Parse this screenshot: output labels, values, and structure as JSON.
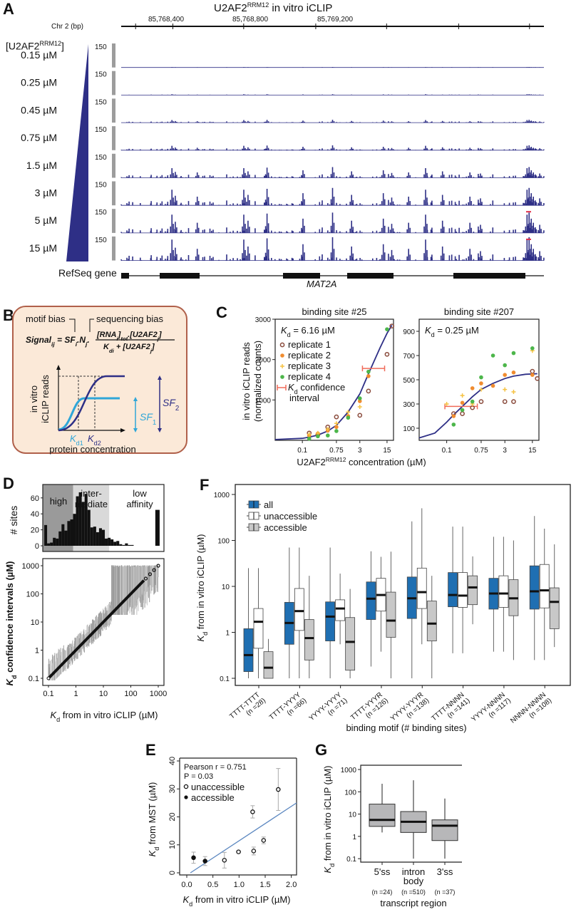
{
  "panels": {
    "A": "A",
    "B": "B",
    "C": "C",
    "D": "D",
    "E": "E",
    "F": "F",
    "G": "G"
  },
  "colors": {
    "navy": "#2e2f86",
    "blue": "#1f6fb2",
    "lightblue": "#2fa6d8",
    "gray": "#c8c8c8",
    "darkgray": "#8c8c8c",
    "salmon": "#f06b5a",
    "rep1": "#8a4b3c",
    "rep2": "#f08c30",
    "rep3": "#f5c242",
    "rep4": "#4cb64a",
    "boxbg": "#fbe9d8",
    "boxborder": "#b0604a"
  },
  "panelA": {
    "title_main": "U2AF2",
    "title_sup": "RRM12",
    "title_rest": " in vitro iCLIP",
    "axis_label": "Chr 2 (bp)",
    "coords": [
      "85,768,400",
      "85,768,800",
      "85,769,200"
    ],
    "conc_header_main": "[U2AF2",
    "conc_header_sup": "RRM12",
    "conc_header_end": "]",
    "track_scale": "150",
    "tracks": [
      {
        "label": "0.15 µM",
        "level": 0.05
      },
      {
        "label": "0.25 µM",
        "level": 0.08
      },
      {
        "label": "0.45 µM",
        "level": 0.2
      },
      {
        "label": "0.75 µM",
        "level": 0.3
      },
      {
        "label": "1.5 µM",
        "level": 0.55
      },
      {
        "label": "3 µM",
        "level": 0.8
      },
      {
        "label": "5 µM",
        "level": 0.9
      },
      {
        "label": "15 µM",
        "level": 1.0
      }
    ],
    "refseq_label": "RefSeq gene",
    "gene_name": "MAT2A"
  },
  "panelB": {
    "motif_bias": "motif bias",
    "sequencing_bias": "sequencing bias",
    "formula_lhs": "Signal",
    "formula_lhs_sub": "ij",
    "formula_mid": " = SF",
    "formula_mid_sub": "i",
    "formula_n": ".N",
    "formula_n_sub": "j",
    "numerator": "[RNA",
    "numerator_sub": "i",
    "numerator_rest": "]",
    "numerator_tot": "tot",
    "numerator_u2af": ".[U2AF2",
    "numerator_u2af_sub": "j",
    "numerator_end": "]",
    "denominator": "K",
    "denominator_sub": "di",
    "denominator_rest": " + [U2AF2",
    "denominator_rest_sub": "j",
    "denominator_end": "]",
    "ylabel1": "in vitro",
    "ylabel2": "iCLIP reads",
    "xlabel": "protein concentration",
    "kd1": "K",
    "kd1_sub": "d1",
    "kd2": "K",
    "kd2_sub": "d2",
    "sf1": "SF",
    "sf1_sub": "1",
    "sf2": "SF",
    "sf2_sub": "2"
  },
  "panelC": {
    "ylabel1": "in vitro iCLIP reads",
    "ylabel2": "(normalized counts)",
    "xlabel_main": "U2AF2",
    "xlabel_sup": "RRM12",
    "xlabel_rest": " concentration (µM)",
    "legend": [
      "replicate 1",
      "replicate 2",
      "replicate 3",
      "replicate 4"
    ],
    "legend_ci1": "confidence",
    "legend_ci2": "interval",
    "legend_ci_k": "K",
    "legend_ci_sub": "d"
  },
  "panelD": {
    "hist_ylabel": "# sites",
    "regions": [
      "high",
      "inter-",
      "mediate",
      "low",
      "affinity"
    ],
    "ylabel_k": "K",
    "ylabel_sub": "d",
    "ylabel_rest": " confidence intervals (µM)",
    "xlabel_k": "K",
    "xlabel_sub": "d",
    "xlabel_rest": " from in vitro iCLIP (µM)"
  },
  "panelE": {
    "stat1": "Pearson r = 0.751",
    "stat2": "P = 0.03",
    "legend": [
      "unaccessible",
      "accessible"
    ],
    "ylabel_k": "K",
    "ylabel_sub": "d",
    "ylabel_rest": " from MST (µM)",
    "xlabel_k": "K",
    "xlabel_sub": "d",
    "xlabel_rest": " from in vitro iCLIP (µM)"
  },
  "panelF": {
    "legend": [
      "all",
      "unaccessible",
      "accessible"
    ],
    "ylabel_k": "K",
    "ylabel_sub": "d",
    "ylabel_rest": " from in vitro iCLIP (µM)",
    "xlabel": "binding motif (# binding sites)"
  },
  "panelG": {
    "ylabel_k": "K",
    "ylabel_sub": "d",
    "ylabel_rest": " from in vitro iCLIP (µM)",
    "xlabel": "transcript region"
  },
  "chart_data": [
    {
      "id": "C1",
      "type": "scatter",
      "title": "binding site #25",
      "annotation": "Kd = 6.16 µM",
      "xscale": "log",
      "xticks": [
        0.1,
        0.75,
        3,
        15
      ],
      "xtick_labels": [
        "0.1",
        "0.75",
        "3",
        "15"
      ],
      "yticks": [
        1000,
        2000,
        3000
      ],
      "ylim": [
        0,
        3000
      ],
      "xlim": [
        0.02,
        22
      ],
      "ci": [
        3.5,
        13
      ],
      "ci_y": 1780,
      "fit": {
        "x": [
          0.02,
          0.1,
          0.15,
          0.25,
          0.45,
          0.75,
          1.5,
          3,
          5,
          10,
          15,
          20
        ],
        "y": [
          20,
          50,
          80,
          130,
          230,
          370,
          700,
          1150,
          1650,
          2300,
          2650,
          2850
        ]
      },
      "series": [
        {
          "name": "replicate 1",
          "x": [
            0.15,
            0.25,
            0.45,
            0.75,
            3,
            5,
            15,
            20
          ],
          "y": [
            180,
            140,
            330,
            580,
            620,
            1220,
            2130,
            2830
          ]
        },
        {
          "name": "replicate 2",
          "x": [
            0.15,
            0.25,
            0.45,
            0.75,
            1.5,
            3,
            5
          ],
          "y": [
            120,
            170,
            240,
            330,
            600,
            970,
            1590
          ]
        },
        {
          "name": "replicate 3",
          "x": [
            0.15,
            0.25,
            0.45,
            0.75,
            1.5,
            3
          ],
          "y": [
            150,
            180,
            280,
            420,
            700,
            830
          ]
        },
        {
          "name": "replicate 4",
          "x": [
            0.15,
            0.25,
            0.45,
            0.75,
            1.5,
            3,
            5,
            15
          ],
          "y": [
            40,
            100,
            120,
            230,
            560,
            1040,
            1700,
            2750
          ]
        }
      ]
    },
    {
      "id": "C2",
      "type": "scatter",
      "title": "binding site #207",
      "annotation": "Kd = 0.25 µM",
      "xscale": "log",
      "xticks": [
        0.1,
        0.75,
        3,
        15
      ],
      "xtick_labels": [
        "0.1",
        "0.75",
        "3",
        "15"
      ],
      "yticks": [
        100,
        300,
        500,
        700,
        900
      ],
      "ylim": [
        0,
        1000
      ],
      "xlim": [
        0.02,
        22
      ],
      "ci": [
        0.09,
        0.6
      ],
      "ci_y": 280,
      "fit": {
        "x": [
          0.02,
          0.05,
          0.1,
          0.15,
          0.25,
          0.45,
          0.75,
          1.5,
          3,
          5,
          10,
          20
        ],
        "y": [
          20,
          60,
          150,
          210,
          280,
          360,
          420,
          470,
          510,
          530,
          545,
          550
        ]
      },
      "series": [
        {
          "name": "replicate 1",
          "x": [
            0.15,
            0.25,
            0.45,
            0.75,
            3,
            5,
            15,
            20
          ],
          "y": [
            220,
            220,
            270,
            320,
            320,
            320,
            570,
            510
          ]
        },
        {
          "name": "replicate 2",
          "x": [
            0.15,
            0.25,
            0.45,
            0.75,
            1.5,
            3,
            5,
            15
          ],
          "y": [
            200,
            310,
            430,
            470,
            450,
            540,
            560,
            540
          ]
        },
        {
          "name": "replicate 3",
          "x": [
            0.1,
            0.25,
            0.45,
            0.75,
            3,
            5,
            15
          ],
          "y": [
            300,
            370,
            300,
            420,
            420,
            400,
            740
          ]
        },
        {
          "name": "replicate 4",
          "x": [
            0.15,
            0.25,
            0.45,
            0.75,
            1.5,
            3,
            5,
            15
          ],
          "y": [
            130,
            250,
            320,
            520,
            700,
            620,
            720,
            760
          ]
        }
      ]
    },
    {
      "id": "D-hist",
      "type": "bar",
      "ylabel": "# sites",
      "yticks": [
        0,
        20,
        40,
        60
      ],
      "ylim": [
        0,
        75
      ],
      "xscale": "log",
      "bins_log10_start": -1,
      "bin_width_log10": 0.1,
      "values": [
        26,
        3,
        4,
        10,
        9,
        18,
        27,
        19,
        31,
        33,
        40,
        62,
        67,
        55,
        65,
        45,
        23,
        24,
        17,
        22,
        20,
        9,
        10,
        8,
        5,
        6,
        2,
        1,
        3,
        1,
        1,
        0,
        45
      ],
      "regions": [
        {
          "name": "high",
          "range": [
            0.1,
            1
          ],
          "color": "#9a9a9a"
        },
        {
          "name": "intermediate",
          "range": [
            1,
            18
          ],
          "color": "#d9d9d9"
        },
        {
          "name": "low affinity",
          "range": [
            18,
            1000
          ],
          "color": "#ffffff"
        }
      ]
    },
    {
      "id": "D-scatter",
      "type": "scatter",
      "xscale": "log",
      "yscale": "log",
      "xticks": [
        0.1,
        1,
        10,
        100,
        1000
      ],
      "xtick_labels": [
        "0.1",
        "1",
        "10",
        "100",
        "1000"
      ],
      "yticks": [
        0.1,
        1,
        10,
        100,
        1000
      ],
      "ytick_labels": [
        "0.1",
        "1",
        "10",
        "100",
        "1000"
      ],
      "xlim": [
        0.1,
        1000
      ],
      "ylim": [
        0.1,
        1000
      ],
      "xlabel": "Kd from in vitro iCLIP (µM)",
      "ylabel": "Kd confidence intervals (µM)"
    },
    {
      "id": "E",
      "type": "scatter",
      "xlim": [
        0,
        2.1
      ],
      "ylim": [
        0,
        40
      ],
      "xticks": [
        0.0,
        0.5,
        1.0,
        1.5,
        2.0
      ],
      "xtick_labels": [
        "0.0",
        "0.5",
        "1.0",
        "1.5",
        "2.0"
      ],
      "yticks": [
        0,
        10,
        20,
        30,
        40
      ],
      "ytick_labels": [
        "0",
        "10",
        "20",
        "30",
        "40"
      ],
      "fit_line": {
        "x": [
          0.07,
          2.1
        ],
        "y": [
          0,
          25
        ]
      },
      "series": [
        {
          "name": "unaccessible",
          "x": [
            0.72,
            0.99,
            1.26,
            1.28,
            1.47,
            1.75
          ],
          "y": [
            4.5,
            7.5,
            21.8,
            7.8,
            11.6,
            29.8
          ],
          "err": [
            2.8,
            0,
            2.2,
            1.4,
            1.2,
            7.5
          ]
        },
        {
          "name": "accessible",
          "x": [
            0.13,
            0.35
          ],
          "y": [
            5.4,
            4.2
          ],
          "err": [
            2,
            1.6
          ]
        }
      ]
    },
    {
      "id": "F",
      "type": "box",
      "yscale": "log",
      "ylim": [
        0.07,
        1000
      ],
      "yticks": [
        0.1,
        1,
        10,
        100,
        1000
      ],
      "ytick_labels": [
        "0.1",
        "1",
        "10",
        "100",
        "1000"
      ],
      "categories": [
        "TTTT-TTTT",
        "TTTT-YYYY",
        "YYYY-YYYY",
        "TTTT-YYYR",
        "YYYY-YYYR",
        "TTTT-NNNN",
        "YYYY-NNNN",
        "NNNN-NNNN"
      ],
      "counts": [
        "(n =28)",
        "(n =66)",
        "(n =71)",
        "(n =126)",
        "(n =138)",
        "(n =141)",
        "(n =117)",
        "(n =108)"
      ],
      "series": [
        {
          "name": "all",
          "boxes": [
            [
              0.1,
              0.14,
              0.32,
              1.2,
              25
            ],
            [
              0.1,
              0.55,
              1.6,
              4.5,
              70
            ],
            [
              0.1,
              0.65,
              2.2,
              4.6,
              70
            ],
            [
              0.18,
              1.9,
              5.4,
              12.5,
              58
            ],
            [
              0.1,
              2,
              5.5,
              16,
              260
            ],
            [
              0.35,
              3.6,
              6.5,
              20,
              200
            ],
            [
              0.38,
              3.2,
              7,
              15,
              120
            ],
            [
              0.25,
              3.2,
              7.8,
              28,
              340
            ]
          ]
        },
        {
          "name": "unaccessible",
          "boxes": [
            [
              0.1,
              0.45,
              1.7,
              3.3,
              25
            ],
            [
              0.1,
              1.1,
              2.9,
              9,
              70
            ],
            [
              0.55,
              1.8,
              3.3,
              5.1,
              19
            ],
            [
              0.38,
              2.9,
              6.5,
              15,
              44
            ],
            [
              0.55,
              3.3,
              7.5,
              25,
              500
            ],
            [
              0.35,
              3.5,
              6.3,
              20,
              200
            ],
            [
              0.38,
              3.5,
              7,
              17,
              120
            ],
            [
              0.25,
              3.4,
              8.2,
              30,
              180
            ]
          ]
        },
        {
          "name": "accessible",
          "boxes": [
            [
              0.1,
              0.1,
              0.17,
              0.38,
              0.72
            ],
            [
              0.1,
              0.25,
              0.75,
              1.9,
              17
            ],
            [
              0.1,
              0.15,
              0.62,
              2.1,
              8.8
            ],
            [
              0.1,
              0.78,
              1.8,
              7.5,
              57
            ],
            [
              0.1,
              0.65,
              1.55,
              4.8,
              17
            ],
            [
              1.5,
              4,
              9.5,
              17,
              45
            ],
            [
              0.25,
              2.3,
              5.5,
              14,
              100
            ],
            [
              0.48,
              1.2,
              4.6,
              9.3,
              82
            ]
          ]
        }
      ]
    },
    {
      "id": "G",
      "type": "box",
      "yscale": "log",
      "ylim": [
        0.07,
        1000
      ],
      "yticks": [
        0.1,
        1,
        10,
        100,
        1000
      ],
      "ytick_labels": [
        "0.1",
        "1",
        "10",
        "100",
        "1000"
      ],
      "categories": [
        "5'ss",
        "intron",
        "3'ss"
      ],
      "categories_line2": [
        "",
        "body",
        ""
      ],
      "counts": [
        "(n =24)",
        "(n =510)",
        "(n =37)"
      ],
      "boxes": [
        [
          1.5,
          2.8,
          5.5,
          28,
          230
        ],
        [
          0.1,
          1.5,
          4.5,
          13,
          330
        ],
        [
          0.1,
          0.65,
          3,
          5.5,
          50
        ]
      ]
    }
  ]
}
